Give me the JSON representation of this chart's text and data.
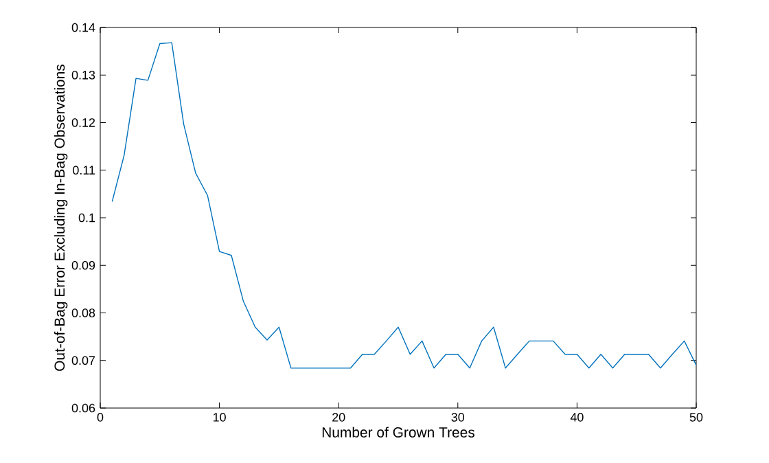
{
  "chart_data": {
    "type": "line",
    "xlabel": "Number of Grown Trees",
    "ylabel": "Out-of-Bag Error Excluding In-Bag Observations",
    "x": [
      1,
      2,
      3,
      4,
      5,
      6,
      7,
      8,
      9,
      10,
      11,
      12,
      13,
      14,
      15,
      16,
      17,
      18,
      19,
      20,
      21,
      22,
      23,
      24,
      25,
      26,
      27,
      28,
      29,
      30,
      31,
      32,
      33,
      34,
      35,
      36,
      37,
      38,
      39,
      40,
      41,
      42,
      43,
      44,
      45,
      46,
      47,
      48,
      49,
      50
    ],
    "series": [
      {
        "color": "#0072bd",
        "values": [
          0.1034,
          0.1131,
          0.1293,
          0.1289,
          0.1366,
          0.1368,
          0.1197,
          0.1094,
          0.1047,
          0.0929,
          0.0921,
          0.0825,
          0.077,
          0.0743,
          0.077,
          0.0684,
          0.0684,
          0.0684,
          0.0684,
          0.0684,
          0.0684,
          0.0713,
          0.0713,
          0.0741,
          0.077,
          0.0713,
          0.0741,
          0.0684,
          0.0713,
          0.0713,
          0.0684,
          0.0741,
          0.077,
          0.0684,
          0.0713,
          0.0741,
          0.0741,
          0.0741,
          0.0713,
          0.0713,
          0.0684,
          0.0713,
          0.0684,
          0.0713,
          0.0713,
          0.0713,
          0.0684,
          0.0713,
          0.0741,
          0.069
        ]
      }
    ],
    "xlim": [
      0,
      50
    ],
    "ylim": [
      0.06,
      0.14
    ],
    "xticks": [
      0,
      10,
      20,
      30,
      40,
      50
    ],
    "yticks": [
      0.06,
      0.07,
      0.08,
      0.09,
      0.1,
      0.11,
      0.12,
      0.13,
      0.14
    ],
    "line_style": "solid"
  }
}
